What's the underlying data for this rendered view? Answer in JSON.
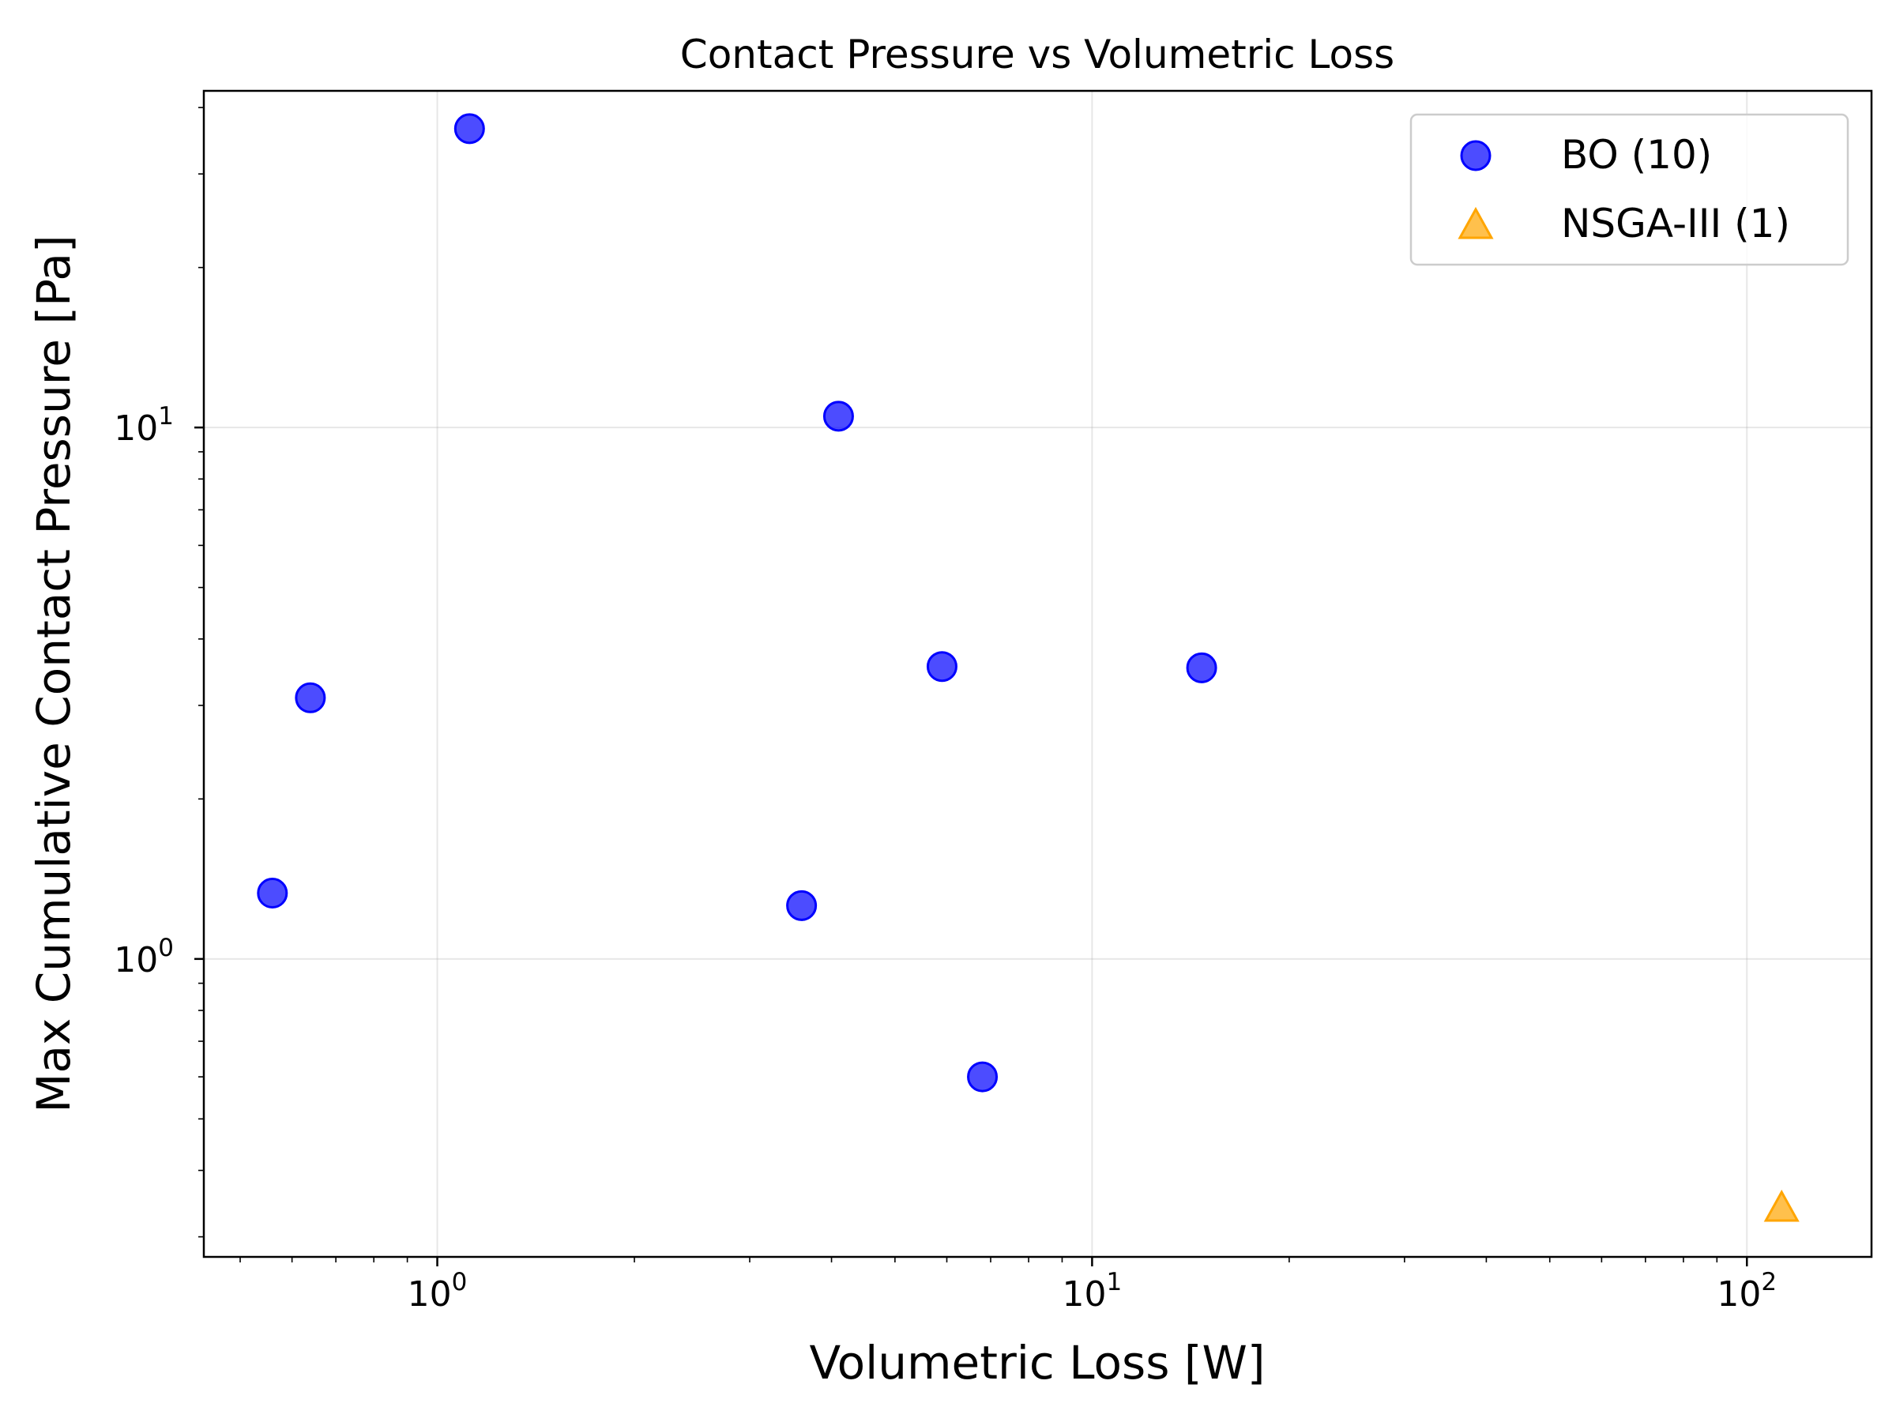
{
  "chart_data": {
    "type": "scatter",
    "title": "Contact Pressure vs Volumetric Loss",
    "xlabel": "Volumetric Loss [W]",
    "ylabel": "Max Cumulative Contact Pressure [Pa]",
    "xscale": "log",
    "yscale": "log",
    "xlim": [
      0.44,
      155
    ],
    "ylim": [
      0.275,
      43
    ],
    "grid": true,
    "legend_position": "top-right",
    "x_ticks": [
      {
        "value": 1,
        "base": "10",
        "exp": "0"
      },
      {
        "value": 10,
        "base": "10",
        "exp": "1"
      },
      {
        "value": 100,
        "base": "10",
        "exp": "2"
      }
    ],
    "y_ticks": [
      {
        "value": 1,
        "base": "10",
        "exp": "0"
      },
      {
        "value": 10,
        "base": "10",
        "exp": "1"
      }
    ],
    "series": [
      {
        "name": "BO (10)",
        "marker": "circle",
        "color": "#0000ff",
        "points": [
          {
            "x": 1.12,
            "y": 36.5
          },
          {
            "x": 0.64,
            "y": 3.1
          },
          {
            "x": 0.56,
            "y": 1.33
          },
          {
            "x": 4.1,
            "y": 10.5
          },
          {
            "x": 3.6,
            "y": 1.26
          },
          {
            "x": 5.9,
            "y": 3.55
          },
          {
            "x": 14.7,
            "y": 3.53
          },
          {
            "x": 6.8,
            "y": 0.6
          }
        ]
      },
      {
        "name": "NSGA-III (1)",
        "marker": "triangle",
        "color": "#ffa500",
        "points": [
          {
            "x": 113,
            "y": 0.34
          }
        ]
      }
    ]
  }
}
